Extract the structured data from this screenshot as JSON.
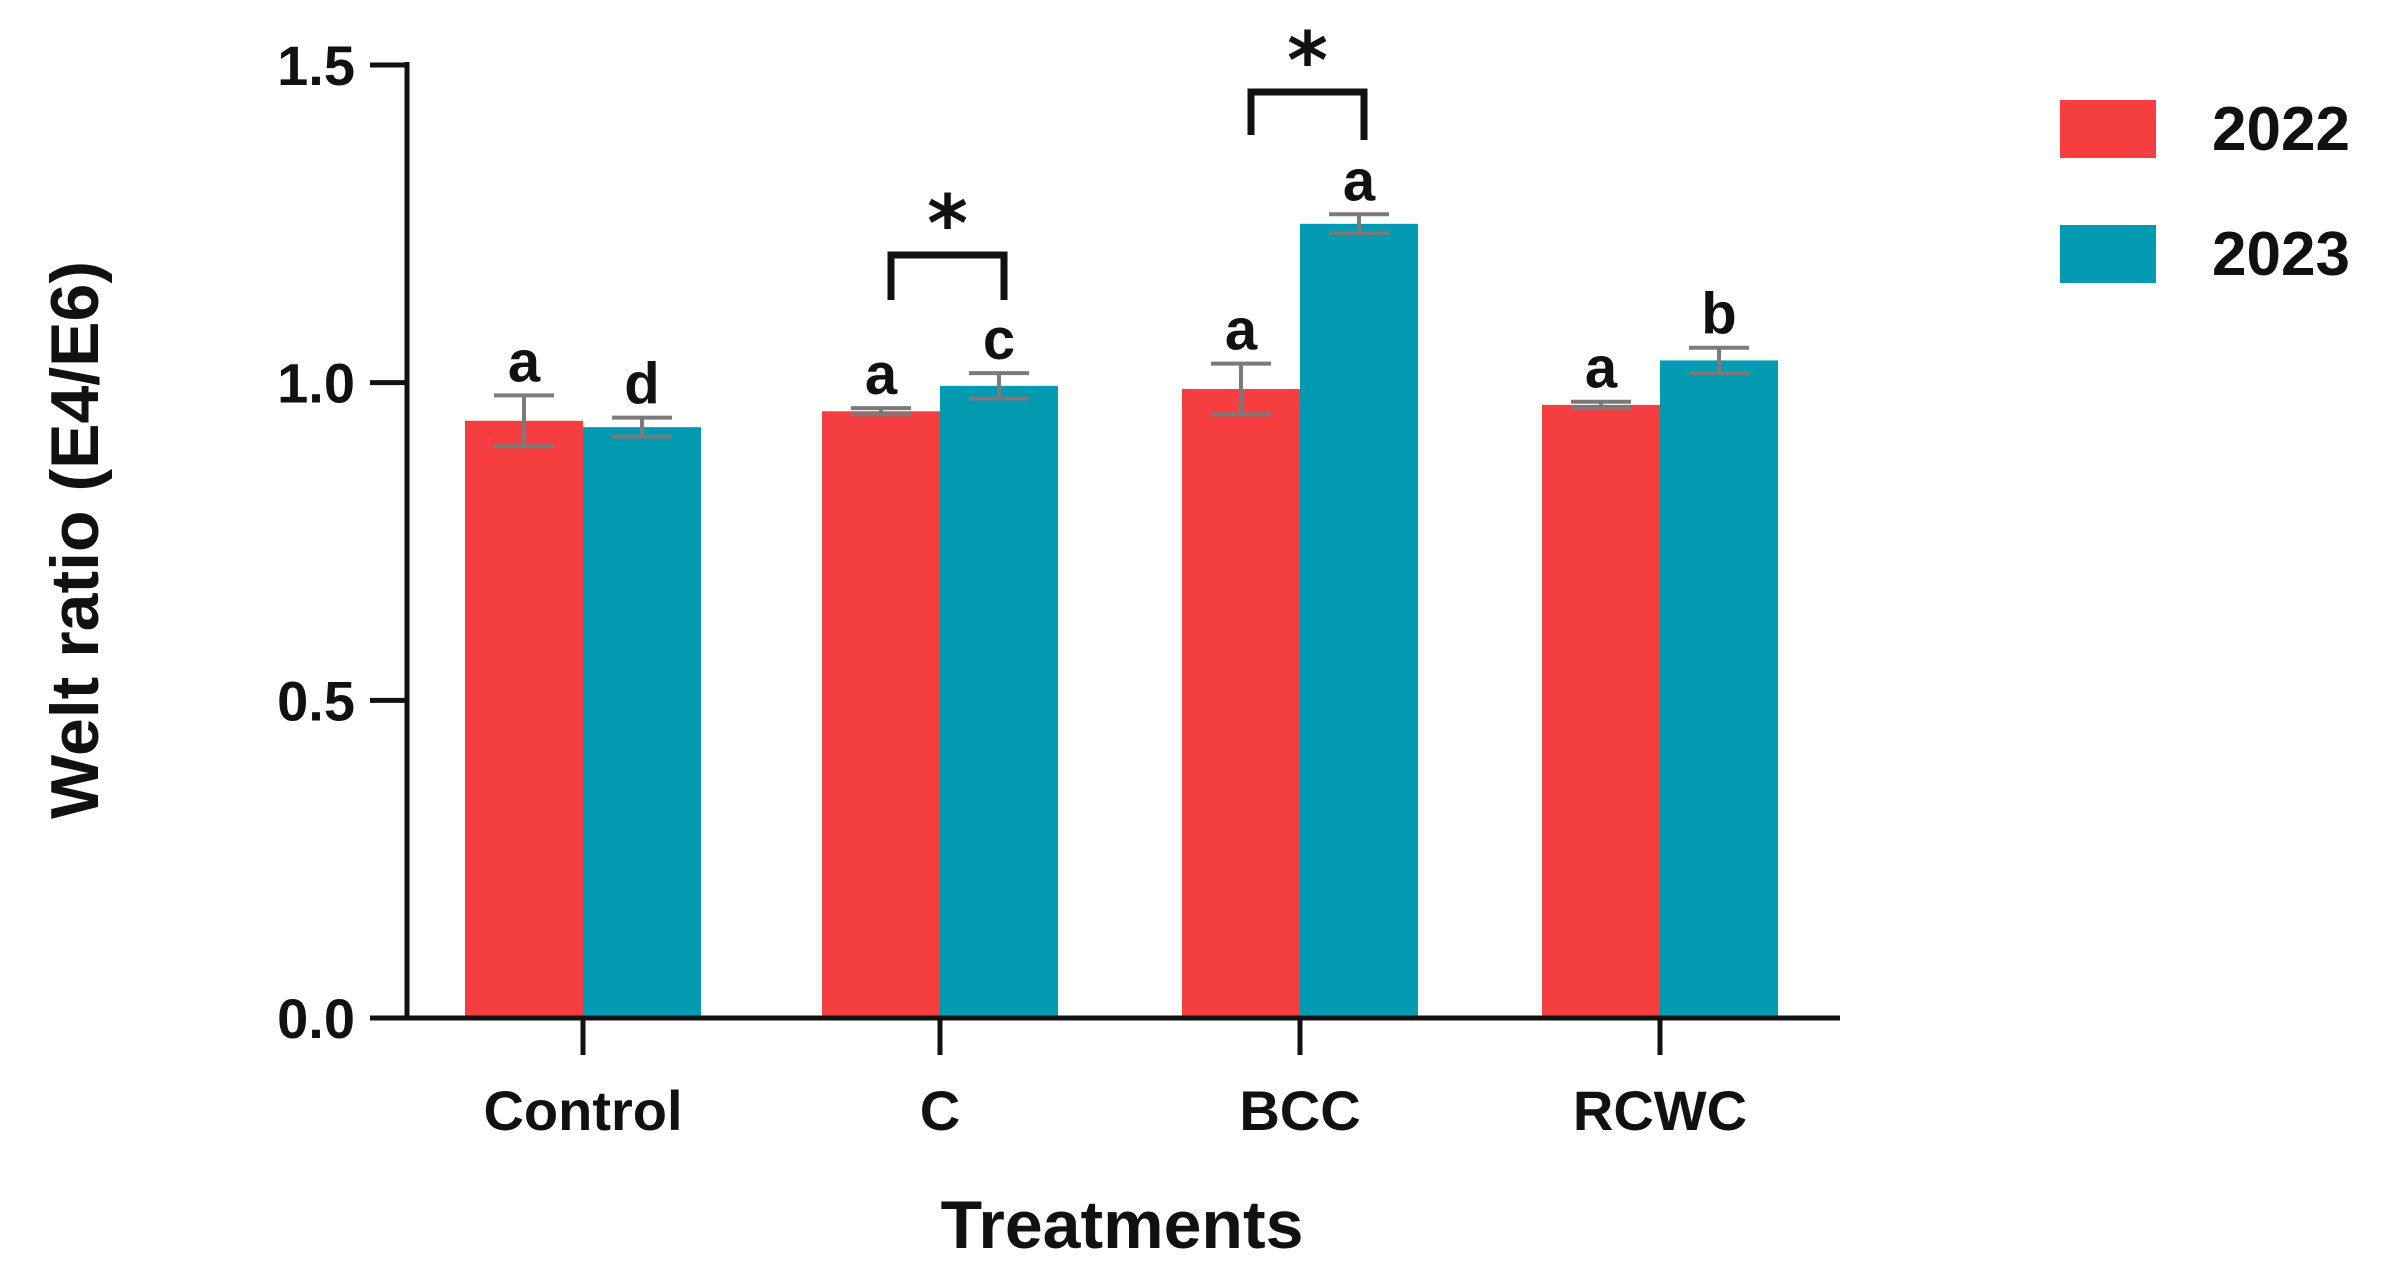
{
  "chart_data": {
    "type": "bar",
    "title": "",
    "xlabel": "Treatments",
    "ylabel": "Welt ratio (E4/E6)",
    "ylim": [
      0,
      1.5
    ],
    "yticks": [
      "0.0",
      "0.5",
      "1.0",
      "1.5"
    ],
    "categories": [
      "Control",
      "C",
      "BCC",
      "RCWC"
    ],
    "series": [
      {
        "name": "2022",
        "color": "#f43e3f",
        "values": [
          0.94,
          0.955,
          0.99,
          0.965
        ],
        "errors": [
          0.04,
          0.005,
          0.04,
          0.005
        ],
        "letters": [
          "a",
          "a",
          "a",
          "a"
        ]
      },
      {
        "name": "2023",
        "color": "#029bb2",
        "values": [
          0.93,
          0.995,
          1.25,
          1.035
        ],
        "errors": [
          0.015,
          0.02,
          0.015,
          0.02
        ],
        "letters": [
          "d",
          "c",
          "a",
          "b"
        ]
      }
    ],
    "significance": [
      {
        "category": "C",
        "marker": "*"
      },
      {
        "category": "BCC",
        "marker": "*"
      }
    ],
    "legend_position": "top-right"
  }
}
